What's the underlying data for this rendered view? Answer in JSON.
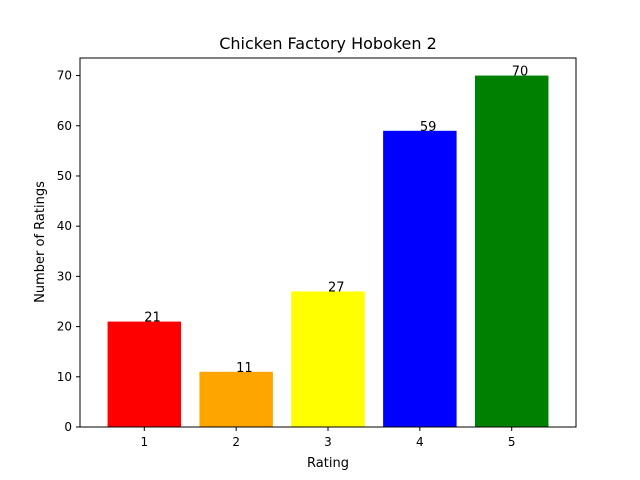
{
  "chart_data": {
    "type": "bar",
    "title": "Chicken Factory Hoboken 2",
    "xlabel": "Rating",
    "ylabel": "Number of Ratings",
    "categories": [
      "1",
      "2",
      "3",
      "4",
      "5"
    ],
    "values": [
      21,
      11,
      27,
      59,
      70
    ],
    "colors": [
      "#ff0000",
      "#ffa500",
      "#ffff00",
      "#0000ff",
      "#008000"
    ],
    "ylim": [
      0,
      73.5
    ],
    "yticks": [
      0,
      10,
      20,
      30,
      40,
      50,
      60,
      70
    ],
    "grid": false,
    "legend": "none"
  }
}
